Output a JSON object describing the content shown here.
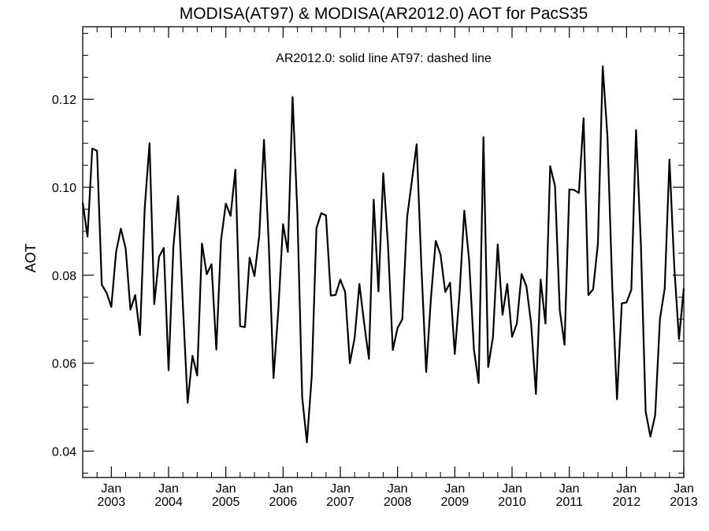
{
  "chart_data": {
    "type": "line",
    "title": "MODISA(AT97) & MODISA(AR2012.0)  AOT for PacS35",
    "annotation": "AR2012.0: solid line   AT97: dashed line",
    "xlabel": "",
    "ylabel": "AOT",
    "xlim": [
      "2002-07",
      "2013-01"
    ],
    "ylim": [
      0.034,
      0.1365
    ],
    "grid": false,
    "y_ticks": [
      {
        "value": 0.04,
        "label": "0.04"
      },
      {
        "value": 0.06,
        "label": "0.06"
      },
      {
        "value": 0.08,
        "label": "0.08"
      },
      {
        "value": 0.1,
        "label": "0.10"
      },
      {
        "value": 0.12,
        "label": "0.12"
      }
    ],
    "x_ticks": [
      {
        "date": "2003-01",
        "month": "Jan",
        "year": "2003"
      },
      {
        "date": "2004-01",
        "month": "Jan",
        "year": "2004"
      },
      {
        "date": "2005-01",
        "month": "Jan",
        "year": "2005"
      },
      {
        "date": "2006-01",
        "month": "Jan",
        "year": "2006"
      },
      {
        "date": "2007-01",
        "month": "Jan",
        "year": "2007"
      },
      {
        "date": "2008-01",
        "month": "Jan",
        "year": "2008"
      },
      {
        "date": "2009-01",
        "month": "Jan",
        "year": "2009"
      },
      {
        "date": "2010-01",
        "month": "Jan",
        "year": "2010"
      },
      {
        "date": "2011-01",
        "month": "Jan",
        "year": "2011"
      },
      {
        "date": "2012-01",
        "month": "Jan",
        "year": "2012"
      },
      {
        "date": "2013-01",
        "month": "Jan",
        "year": "2013"
      }
    ],
    "series": [
      {
        "style": "solid",
        "color": "#000000",
        "start": "2002-07",
        "values": [
          0.0965,
          0.0888,
          0.1088,
          0.1083,
          0.0778,
          0.076,
          0.0728,
          0.0853,
          0.0906,
          0.0861,
          0.0722,
          0.0755,
          0.0664,
          0.0953,
          0.11,
          0.0734,
          0.0842,
          0.0862,
          0.0584,
          0.0865,
          0.098,
          0.073,
          0.051,
          0.0617,
          0.0572,
          0.0872,
          0.0802,
          0.0825,
          0.0631,
          0.088,
          0.0963,
          0.0935,
          0.104,
          0.0684,
          0.0682,
          0.084,
          0.0798,
          0.089,
          0.1108,
          0.087,
          0.0566,
          0.0721,
          0.0916,
          0.0853,
          0.1205,
          0.0942,
          0.0522,
          0.042,
          0.057,
          0.0907,
          0.0941,
          0.0936,
          0.0754,
          0.0755,
          0.079,
          0.0762,
          0.06,
          0.0658,
          0.078,
          0.069,
          0.061,
          0.0972,
          0.0763,
          0.1032,
          0.0866,
          0.063,
          0.068,
          0.07,
          0.0932,
          0.1014,
          0.1098,
          0.082,
          0.058,
          0.075,
          0.0878,
          0.0847,
          0.0762,
          0.0783,
          0.0621,
          0.076,
          0.0947,
          0.0834,
          0.0631,
          0.0555,
          0.1114,
          0.0591,
          0.066,
          0.087,
          0.071,
          0.078,
          0.066,
          0.069,
          0.0803,
          0.0775,
          0.069,
          0.053,
          0.079,
          0.069,
          0.1048,
          0.1003,
          0.072,
          0.0642,
          0.0995,
          0.0994,
          0.0987,
          0.1157,
          0.0755,
          0.0768,
          0.0872,
          0.1275,
          0.1115,
          0.0773,
          0.0518,
          0.0736,
          0.0738,
          0.0767,
          0.113,
          0.0872,
          0.049,
          0.0433,
          0.0482,
          0.07,
          0.077,
          0.1063,
          0.082,
          0.0655,
          0.077
        ]
      }
    ]
  }
}
